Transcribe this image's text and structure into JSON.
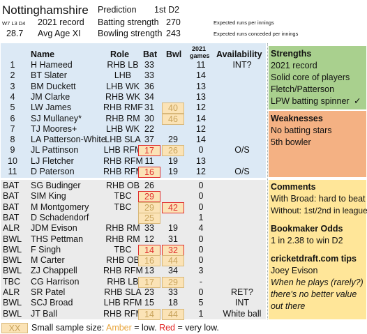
{
  "header": {
    "team": "Nottinghamshire",
    "prediction_label": "Prediction",
    "prediction_value": "1st D2",
    "record_mini": "W7 L3 D4",
    "record_label": "2021 record",
    "batting_label": "Batting strength",
    "batting_value": "270",
    "batting_note": "Expected runs per innings",
    "age_value": "28.7",
    "age_label": "Avg Age XI",
    "bowling_label": "Bowling strength",
    "bowling_value": "243",
    "bowling_note": "Expected runs conceded per innings"
  },
  "columns": {
    "name": "Name",
    "role": "Role",
    "bat": "Bat",
    "bwl": "Bwl",
    "games_year": "2021",
    "games": "games",
    "availability": "Availability"
  },
  "squad": [
    {
      "num": "1",
      "name": "H Hameed",
      "role": "RHB LB",
      "bat": "33",
      "bwl": "",
      "games": "11",
      "avail": ""
    },
    {
      "num": "2",
      "name": "BT Slater",
      "role": "LHB",
      "bat": "33",
      "bwl": "",
      "games": "14",
      "avail": ""
    },
    {
      "num": "3",
      "name": "BM Duckett",
      "role": "LHB WK",
      "bat": "36",
      "bwl": "",
      "games": "13",
      "avail": ""
    },
    {
      "num": "4",
      "name": "JM Clarke",
      "role": "RHB WK",
      "bat": "34",
      "bwl": "",
      "games": "13",
      "avail": ""
    },
    {
      "num": "5",
      "name": "LW James",
      "role": "RHB RMF",
      "bat": "31",
      "bwl": "40",
      "games": "12",
      "avail": ""
    },
    {
      "num": "6",
      "name": "SJ Mullaney*",
      "role": "RHB RM",
      "bat": "30",
      "bwl": "46",
      "games": "14",
      "avail": ""
    },
    {
      "num": "7",
      "name": "TJ Moores+",
      "role": "LHB WK",
      "bat": "22",
      "bwl": "",
      "games": "12",
      "avail": ""
    },
    {
      "num": "8",
      "name": "LA Patterson-White",
      "role": "LHB SLA",
      "bat": "37",
      "bwl": "29",
      "games": "14",
      "avail": ""
    },
    {
      "num": "9",
      "name": "JL Pattinson",
      "role": "LHB RFM",
      "bat": "17",
      "bwl": "26",
      "games": "0",
      "avail": "O/S"
    },
    {
      "num": "10",
      "name": "LJ Fletcher",
      "role": "RHB RFM",
      "bat": "11",
      "bwl": "19",
      "games": "13",
      "avail": ""
    },
    {
      "num": "11",
      "name": "D Paterson",
      "role": "RHB RFM",
      "bat": "16",
      "bwl": "19",
      "games": "12",
      "avail": "O/S"
    }
  ],
  "hameed_avail": "INT?",
  "fringe": [
    {
      "pos": "BAT",
      "name": "SG Budinger",
      "role": "RHB OB",
      "bat": "26",
      "bwl": "",
      "games": "0",
      "avail": ""
    },
    {
      "pos": "BAT",
      "name": "SIM King",
      "role": "TBC",
      "bat": "29",
      "bwl": "",
      "games": "0",
      "avail": ""
    },
    {
      "pos": "BAT",
      "name": "M Montgomery",
      "role": "TBC",
      "bat": "29",
      "bwl": "42",
      "games": "0",
      "avail": ""
    },
    {
      "pos": "BAT",
      "name": "D Schadendorf",
      "role": "",
      "bat": "25",
      "bwl": "",
      "games": "1",
      "avail": ""
    },
    {
      "pos": "ALR",
      "name": "JDM Evison",
      "role": "RHB RM",
      "bat": "33",
      "bwl": "19",
      "games": "4",
      "avail": ""
    },
    {
      "pos": "BWL",
      "name": "THS Pettman",
      "role": "RHB RM",
      "bat": "12",
      "bwl": "31",
      "games": "0",
      "avail": ""
    },
    {
      "pos": "BWL",
      "name": "F Singh",
      "role": "TBC",
      "bat": "14",
      "bwl": "32",
      "games": "0",
      "avail": ""
    },
    {
      "pos": "BWL",
      "name": "M Carter",
      "role": "RHB OB",
      "bat": "16",
      "bwl": "44",
      "games": "0",
      "avail": ""
    },
    {
      "pos": "BWL",
      "name": "ZJ Chappell",
      "role": "RHB RFM",
      "bat": "13",
      "bwl": "34",
      "games": "3",
      "avail": ""
    },
    {
      "pos": "TBC",
      "name": "CG Harrison",
      "role": "RHB LB",
      "bat": "17",
      "bwl": "29",
      "games": "-",
      "avail": ""
    },
    {
      "pos": "ALR",
      "name": "SR Patel",
      "role": "RHB SLA",
      "bat": "23",
      "bwl": "33",
      "games": "0",
      "avail": "RET?"
    },
    {
      "pos": "BWL",
      "name": "SCJ Broad",
      "role": "LHB RFM",
      "bat": "15",
      "bwl": "18",
      "games": "5",
      "avail": "INT"
    },
    {
      "pos": "BWL",
      "name": "JT Ball",
      "role": "RHB RFM",
      "bat": "14",
      "bwl": "44",
      "games": "1",
      "avail": "White ball"
    }
  ],
  "strengths": {
    "title": "Strengths",
    "items": [
      "2021 record",
      "Solid core of players",
      "Fletch/Patterson",
      "LPW batting spinner"
    ],
    "check": "✓"
  },
  "weaknesses": {
    "title": "Weaknesses",
    "items": [
      "No batting stars",
      "5th bowler"
    ]
  },
  "comments": {
    "title": "Comments",
    "items": [
      "With Broad: hard to beat",
      "Without: 1st/2nd in league"
    ]
  },
  "odds": {
    "title": "Bookmaker Odds",
    "text": "1 in 2.38 to win D2"
  },
  "tips": {
    "title": "cricketdraft.com tips",
    "player": "Joey Evison",
    "lines": [
      "When he plays (rarely?)",
      "there's no better value",
      "out there"
    ]
  },
  "legend": {
    "swatch": "XX",
    "text1": "Small sample size: ",
    "amber": "Amber",
    "text2": " = low. ",
    "red": "Red",
    "text3": " = very low."
  },
  "colors": {
    "squad_bg": "#dce9f5",
    "fringe_bg": "#ebebeb",
    "strength_bg": "#a9d08e",
    "weakness_bg": "#f4b183",
    "info_bg": "#ffe699",
    "amber": "#e8a53c",
    "red": "#e02020"
  }
}
